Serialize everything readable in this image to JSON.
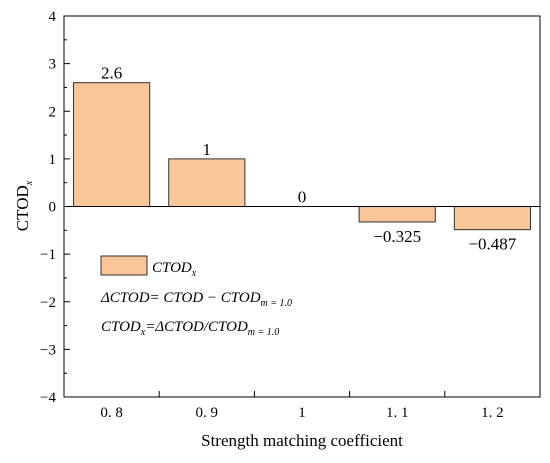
{
  "chart_data": {
    "type": "bar",
    "categories": [
      "0. 8",
      "0. 9",
      "1",
      "1. 1",
      "1. 2"
    ],
    "values": [
      2.6,
      1,
      0,
      -0.325,
      -0.487
    ],
    "data_labels": [
      "2.6",
      "1",
      "0",
      "−0.325",
      "−0.487"
    ],
    "yticks": [
      4,
      3,
      2,
      1,
      0,
      -1,
      -2,
      -3,
      -4
    ],
    "ytick_labels": [
      "4",
      "3",
      "2",
      "1",
      "0",
      "−1",
      "−2",
      "−3",
      "−4"
    ],
    "ylim": [
      -4,
      4
    ],
    "xlabel": "Strength matching coefficient",
    "ylabel": {
      "main": "CTOD",
      "sub": "x"
    },
    "bar_color": "#f9c599",
    "bar_edge_color": "#333333",
    "grid": false,
    "legend": {
      "placement": "lower-left",
      "series": {
        "main": "CTOD",
        "sub": "x"
      },
      "formula1": {
        "a": "ΔCTOD= CTOD − CTOD",
        "sub": "m = 1.0"
      },
      "formula2": {
        "a": "CTOD",
        "a_sub": "x",
        "b": "=ΔCTOD/CTOD",
        "b_sub": "m = 1.0"
      }
    }
  }
}
